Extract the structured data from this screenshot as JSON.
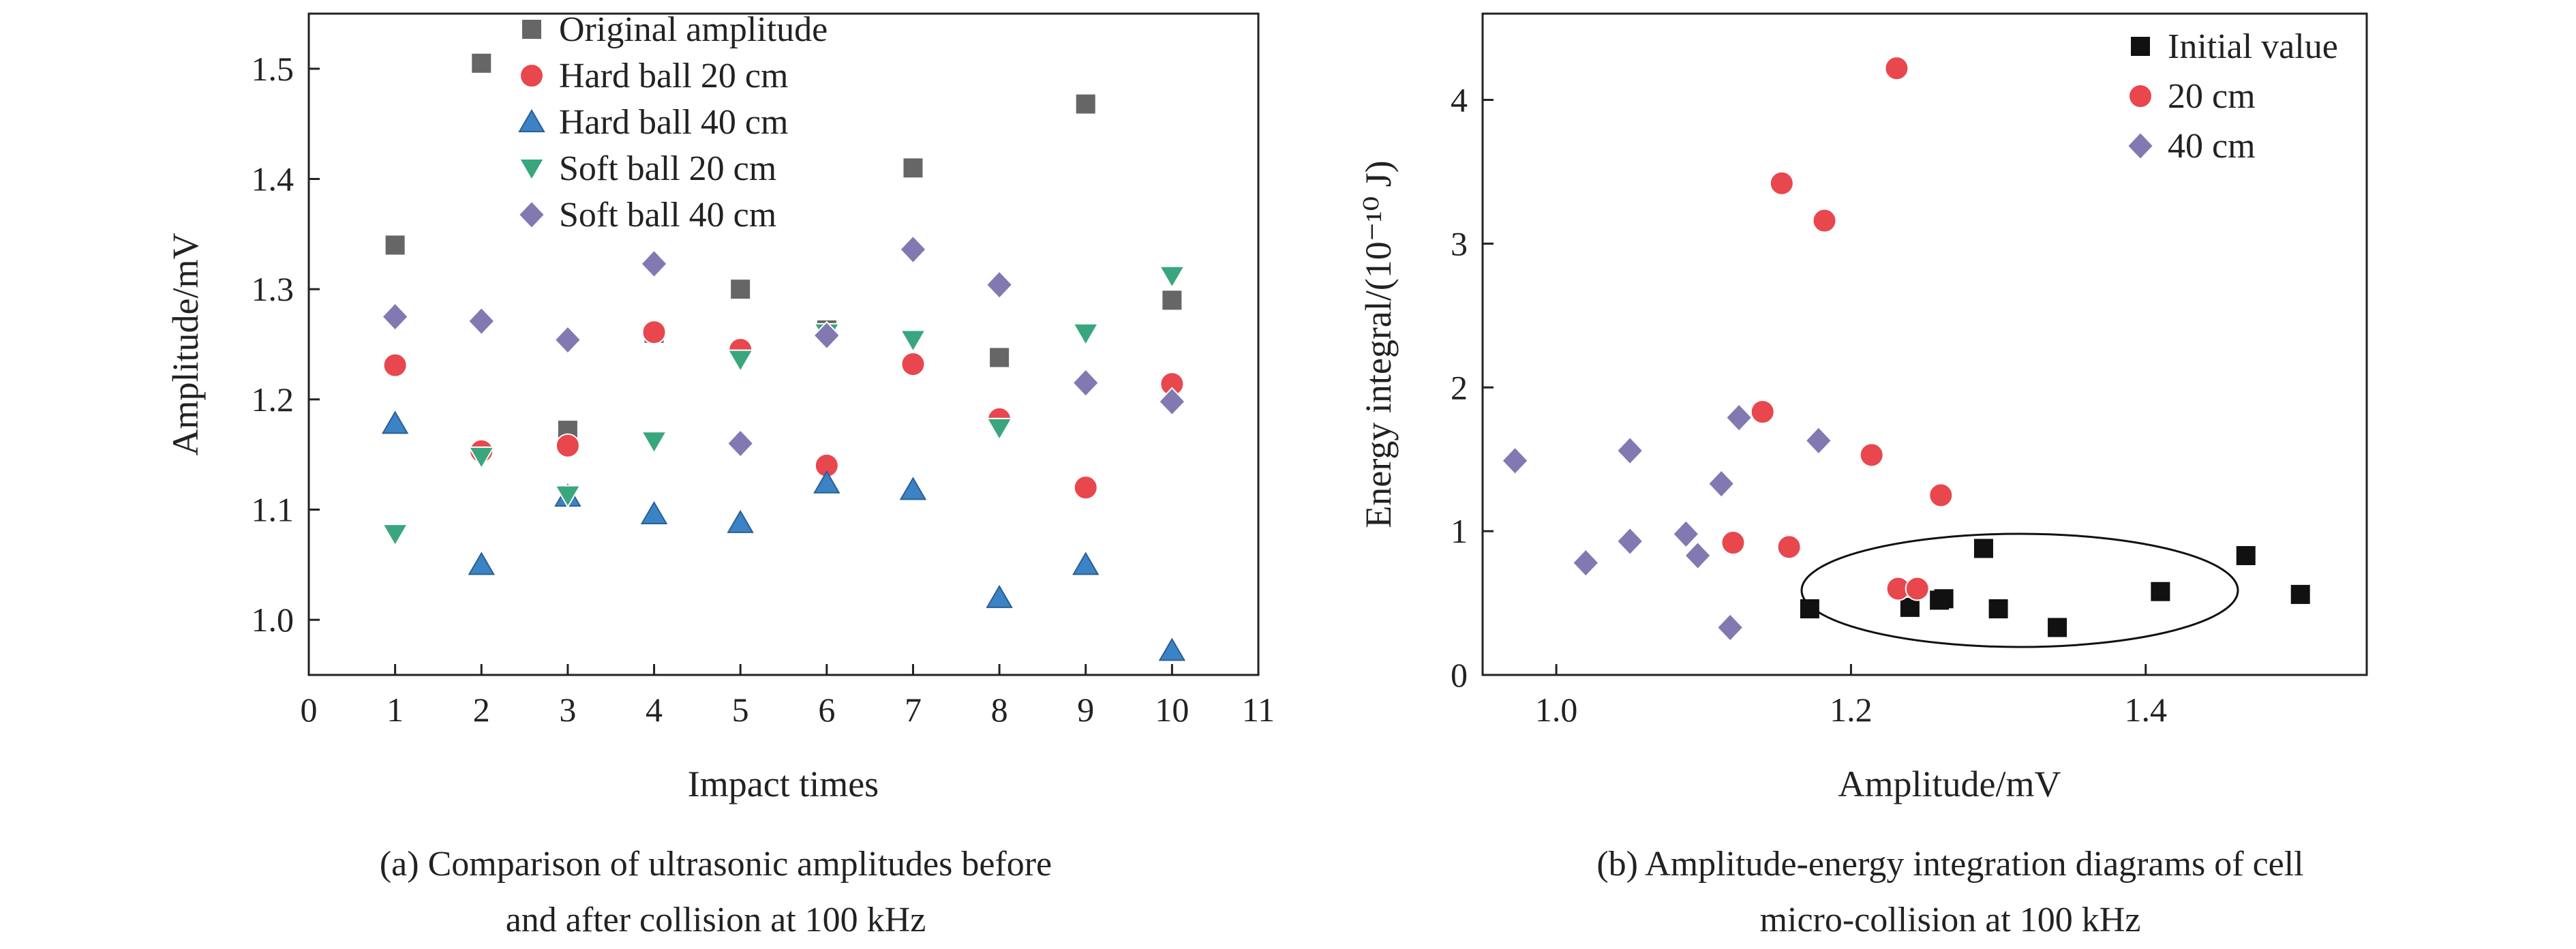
{
  "chart_data": [
    {
      "type": "scatter",
      "caption_lines": [
        "(a) Comparison of ultrasonic amplitudes before",
        "and after collision at 100 kHz"
      ],
      "xlabel": "Impact times",
      "ylabel": "Amplitude/mV",
      "xlim": [
        0,
        11
      ],
      "ylim": [
        0.95,
        1.55
      ],
      "xticks": [
        "0",
        "1",
        "2",
        "3",
        "4",
        "5",
        "6",
        "7",
        "8",
        "9",
        "10",
        "11"
      ],
      "yticks": [
        "1.0",
        "1.1",
        "1.2",
        "1.3",
        "1.4",
        "1.5"
      ],
      "grid": false,
      "legend_position": "top-left",
      "x": [
        1,
        2,
        3,
        4,
        5,
        6,
        7,
        8,
        9,
        10
      ],
      "series": [
        {
          "name": "Original amplitude",
          "marker": "square",
          "color": "#666666",
          "values": [
            1.34,
            1.505,
            1.172,
            1.26,
            1.3,
            1.263,
            1.41,
            1.238,
            1.468,
            1.29
          ]
        },
        {
          "name": "Hard ball 20 cm",
          "marker": "circle",
          "color": "#e8474d",
          "values": [
            1.231,
            1.153,
            1.158,
            1.261,
            1.245,
            1.14,
            1.232,
            1.182,
            1.12,
            1.214
          ]
        },
        {
          "name": "Hard ball 40 cm",
          "marker": "triangle-up",
          "color": "#3b83c5",
          "values": [
            1.178,
            1.05,
            1.112,
            1.096,
            1.088,
            1.124,
            1.118,
            1.02,
            1.05,
            0.972
          ]
        },
        {
          "name": "Soft ball 20 cm",
          "marker": "triangle-down",
          "color": "#3aa67e",
          "values": [
            1.078,
            1.148,
            1.113,
            1.162,
            1.236,
            1.26,
            1.254,
            1.174,
            1.26,
            1.312
          ]
        },
        {
          "name": "Soft ball 40 cm",
          "marker": "diamond",
          "color": "#8279b3",
          "values": [
            1.275,
            1.271,
            1.254,
            1.323,
            1.16,
            1.258,
            1.336,
            1.304,
            1.215,
            1.198
          ]
        }
      ]
    },
    {
      "type": "scatter",
      "caption_lines": [
        "(b) Amplitude-energy integration diagrams of cell",
        "micro-collision at 100 kHz"
      ],
      "xlabel": "Amplitude/mV",
      "ylabel": "Energy integral/(10⁻¹⁰ J)",
      "xlim": [
        0.95,
        1.55
      ],
      "ylim": [
        0,
        4.6
      ],
      "xticks": [
        "1.0",
        "1.2",
        "1.4"
      ],
      "yticks": [
        "0",
        "1",
        "2",
        "3",
        "4"
      ],
      "grid": false,
      "legend_position": "top-right",
      "annotation": "ellipse around initial values",
      "series": [
        {
          "name": "Initial value",
          "marker": "square",
          "color": "#111111",
          "points": [
            [
              1.172,
              0.46
            ],
            [
              1.24,
              0.47
            ],
            [
              1.26,
              0.52
            ],
            [
              1.263,
              0.53
            ],
            [
              1.29,
              0.88
            ],
            [
              1.3,
              0.46
            ],
            [
              1.34,
              0.33
            ],
            [
              1.41,
              0.58
            ],
            [
              1.468,
              0.83
            ],
            [
              1.505,
              0.56
            ]
          ]
        },
        {
          "name": "20 cm",
          "marker": "circle",
          "color": "#e8474d",
          "points": [
            [
              1.12,
              0.92
            ],
            [
              1.14,
              1.83
            ],
            [
              1.153,
              3.42
            ],
            [
              1.158,
              0.89
            ],
            [
              1.182,
              3.16
            ],
            [
              1.214,
              1.53
            ],
            [
              1.231,
              4.22
            ],
            [
              1.232,
              0.6
            ],
            [
              1.245,
              0.6
            ],
            [
              1.261,
              1.25
            ]
          ]
        },
        {
          "name": "40 cm",
          "marker": "diamond",
          "color": "#8279b3",
          "points": [
            [
              0.972,
              1.49
            ],
            [
              1.02,
              0.78
            ],
            [
              1.05,
              1.56
            ],
            [
              1.05,
              0.93
            ],
            [
              1.088,
              0.98
            ],
            [
              1.096,
              0.83
            ],
            [
              1.112,
              1.33
            ],
            [
              1.118,
              0.33
            ],
            [
              1.124,
              1.79
            ],
            [
              1.178,
              1.63
            ]
          ]
        }
      ]
    }
  ]
}
